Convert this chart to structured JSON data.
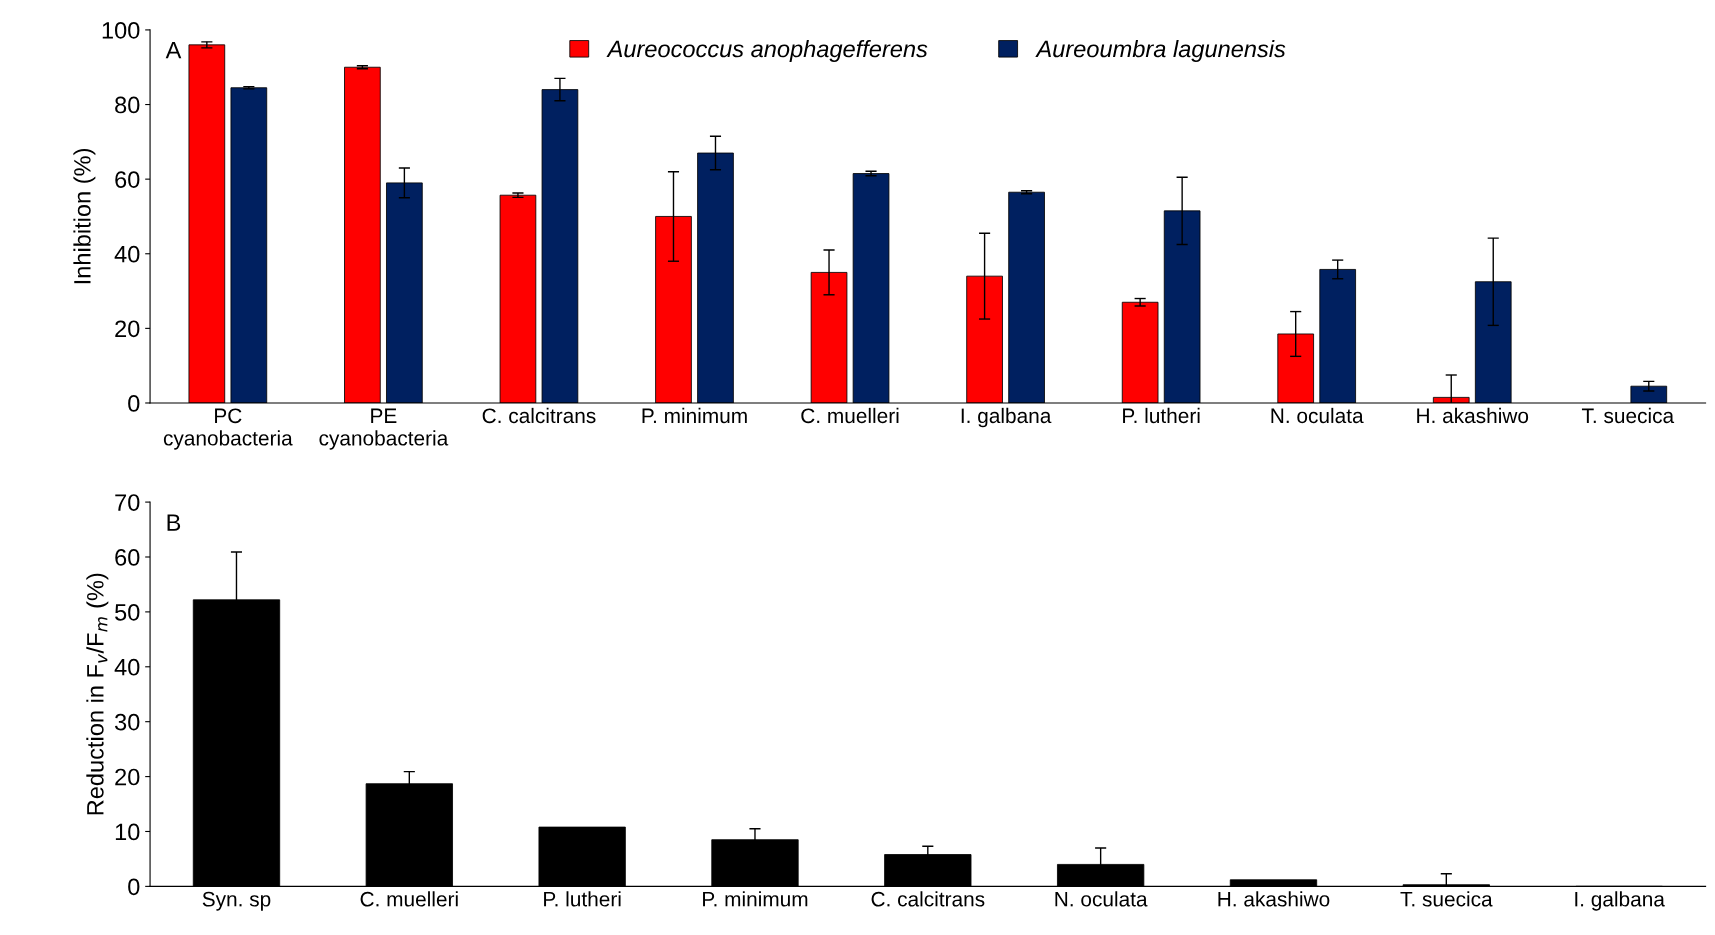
{
  "chart_data": [
    {
      "type": "bar",
      "ylabel": "Inhibition (%)",
      "annotations": [
        "A"
      ],
      "categories": [
        "PC\ncyanobacteria",
        "PE\ncyanobacteria",
        "C. calcitrans",
        "P. minimum",
        "C. muelleri",
        "I. galbana",
        "P. lutheri",
        "N. oculata",
        "H. akashiwo",
        "T. suecica"
      ],
      "series": [
        {
          "name": "Aureococcus anophagefferens",
          "color": "#ff0000",
          "values": [
            96,
            90,
            55.7,
            50,
            35,
            34,
            27,
            18.5,
            1.5,
            null
          ],
          "errors": [
            0.8,
            0.4,
            0.6,
            12,
            6,
            11.5,
            1,
            6,
            6,
            null
          ]
        },
        {
          "name": "Aureoumbra lagunensis",
          "color": "#002060",
          "values": [
            84.5,
            59,
            84,
            67,
            61.5,
            56.5,
            51.5,
            35.8,
            32.5,
            4.5
          ],
          "errors": [
            0.3,
            4,
            3,
            4.5,
            0.6,
            0.4,
            9,
            2.5,
            11.7,
            1.3
          ]
        }
      ],
      "ylim": [
        0,
        100
      ],
      "yticks": [
        0,
        20,
        40,
        60,
        80,
        100
      ],
      "grid": false,
      "legend": "top"
    },
    {
      "type": "bar",
      "ylabel": "Reduction in F$_{v}$/F$_{m}$ (%)",
      "annotations": [
        "B"
      ],
      "categories": [
        "Syn. sp",
        "C. muelleri",
        "P. lutheri",
        "P. minimum",
        "C. calcitrans",
        "N. oculata",
        "H. akashiwo",
        "T. suecica",
        "I. galbana"
      ],
      "series": [
        {
          "color": "#000000",
          "values": [
            52.2,
            18.7,
            10.8,
            8.5,
            5.8,
            4,
            1.2,
            0.3,
            0
          ],
          "errors": [
            8.7,
            2.2,
            null,
            2,
            1.5,
            3,
            null,
            2,
            null
          ]
        }
      ],
      "ylim": [
        0,
        70
      ],
      "yticks": [
        0,
        10,
        20,
        30,
        40,
        50,
        60,
        70
      ],
      "grid": false
    }
  ]
}
